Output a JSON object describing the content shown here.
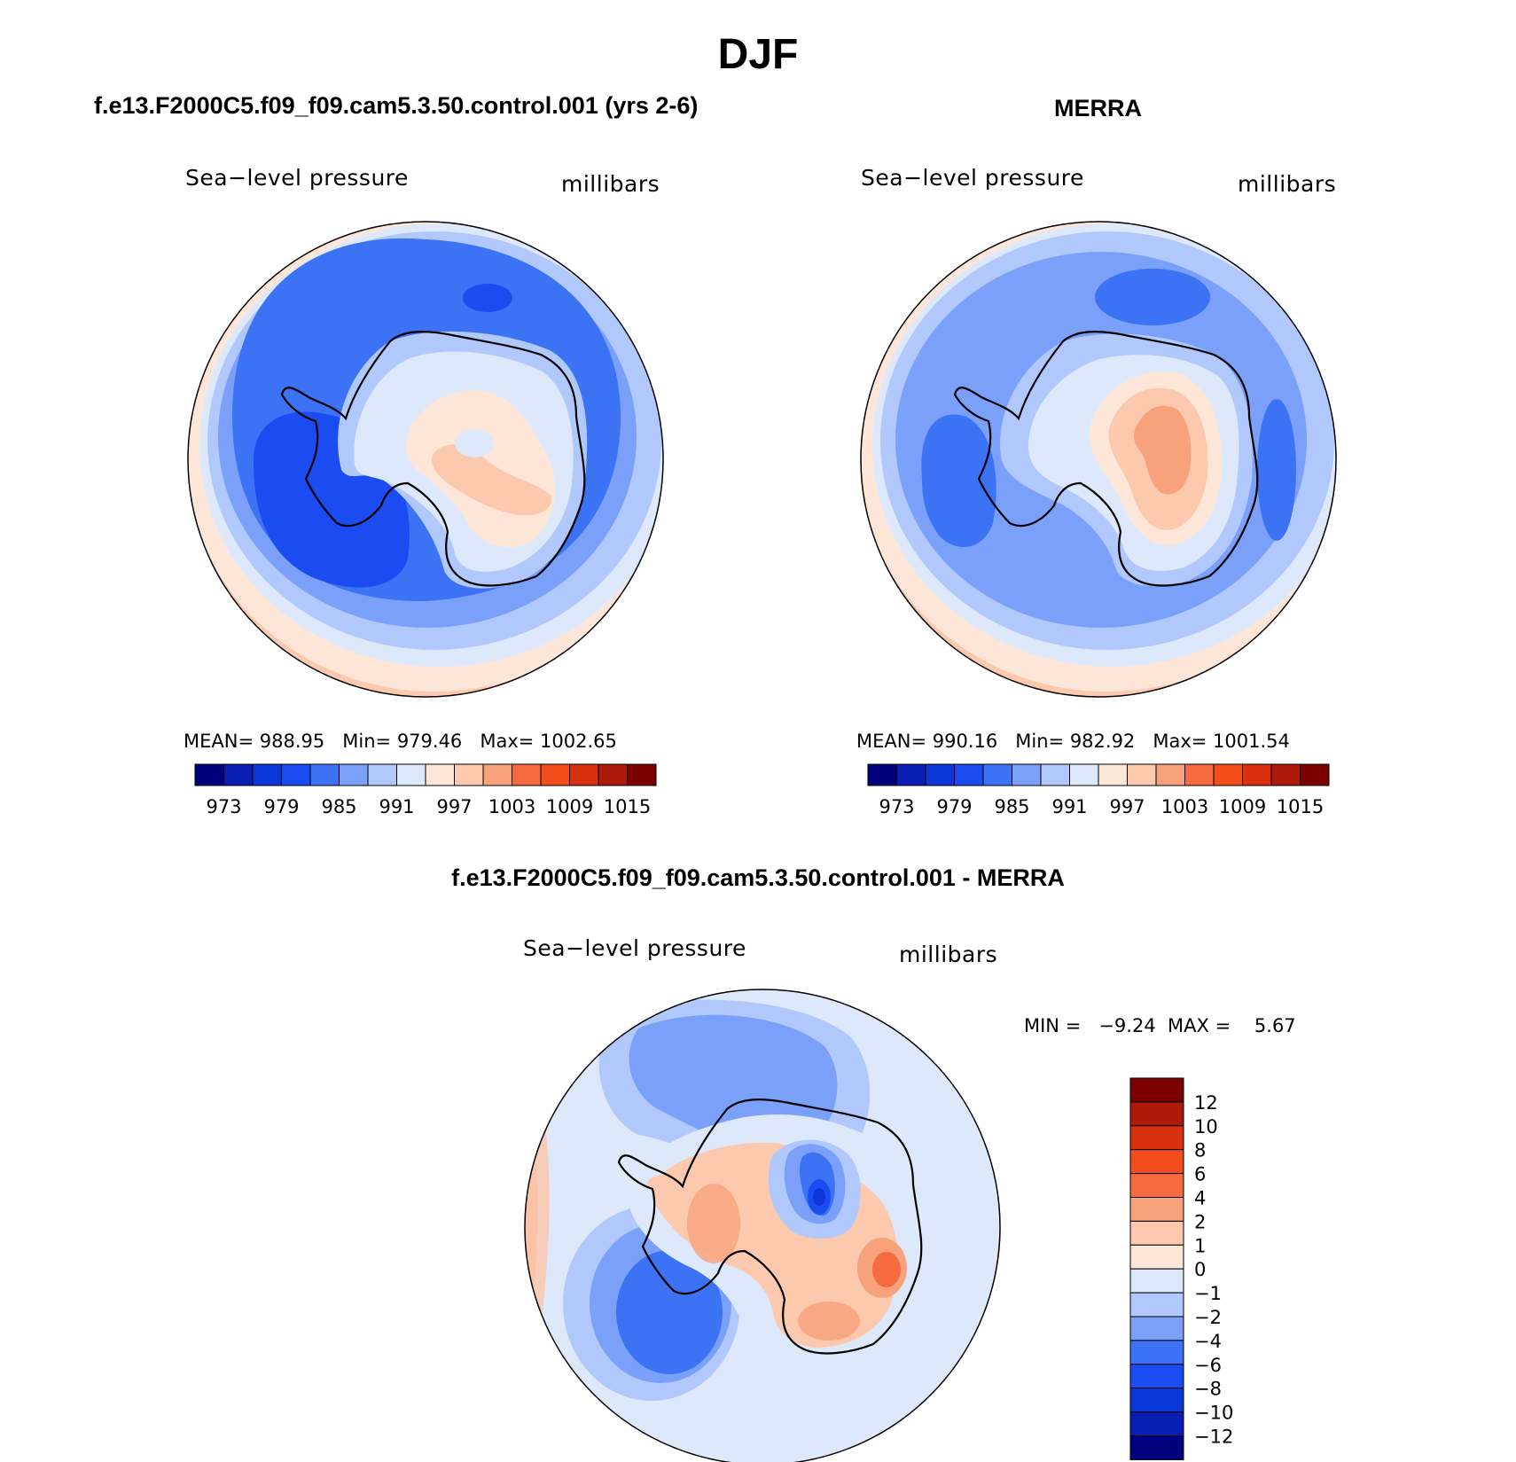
{
  "figure": {
    "title": "DJF"
  },
  "panels": [
    {
      "id": "model",
      "title": "f.e13.F2000C5.f09_f09.cam5.3.50.control.001 (yrs 2-6)",
      "left_label": "Sea−level pressure",
      "right_label": "millibars",
      "stats": {
        "mean_label": "MEAN=",
        "mean": "988.95",
        "min_label": "Min=",
        "min": "979.46",
        "max_label": "Max=",
        "max": "1002.65"
      },
      "colorbar": {
        "levels": [
          "973",
          "979",
          "985",
          "991",
          "997",
          "1003",
          "1009",
          "1015"
        ]
      }
    },
    {
      "id": "obs",
      "title": "MERRA",
      "left_label": "Sea−level pressure",
      "right_label": "millibars",
      "stats": {
        "mean_label": "MEAN=",
        "mean": "990.16",
        "min_label": "Min=",
        "min": "982.92",
        "max_label": "Max=",
        "max": "1001.54"
      },
      "colorbar": {
        "levels": [
          "973",
          "979",
          "985",
          "991",
          "997",
          "1003",
          "1009",
          "1015"
        ]
      }
    },
    {
      "id": "diff",
      "title": "f.e13.F2000C5.f09_f09.cam5.3.50.control.001 - MERRA",
      "left_label": "Sea−level pressure",
      "right_label": "millibars",
      "stats": {
        "min_label": "MIN =",
        "min": "−9.24",
        "max_label": "MAX =",
        "max": "5.67"
      },
      "colorbar": {
        "levels": [
          "12",
          "10",
          "8",
          "6",
          "4",
          "2",
          "1",
          "0",
          "−1",
          "−2",
          "−4",
          "−6",
          "−8",
          "−10",
          "−12"
        ]
      }
    }
  ],
  "colors": {
    "abs_scale": [
      "#00007c",
      "#0a1eb4",
      "#0c37d8",
      "#1a4cf2",
      "#3c72f4",
      "#7aa0fa",
      "#b0c8fb",
      "#dde9fb",
      "#fde6d8",
      "#fcc8ae",
      "#f8a27c",
      "#f56a3f",
      "#f24d1a",
      "#d93010",
      "#ad1a0a",
      "#7c0000"
    ],
    "diff_scale": [
      "#7c0000",
      "#ad1a0a",
      "#d93010",
      "#f24d1a",
      "#f56a3f",
      "#f8a27c",
      "#fcc8ae",
      "#fde6d8",
      "#dde9fb",
      "#b0c8fb",
      "#7aa0fa",
      "#3c72f4",
      "#1a4cf2",
      "#0c37d8",
      "#0a1eb4",
      "#00007c"
    ]
  }
}
